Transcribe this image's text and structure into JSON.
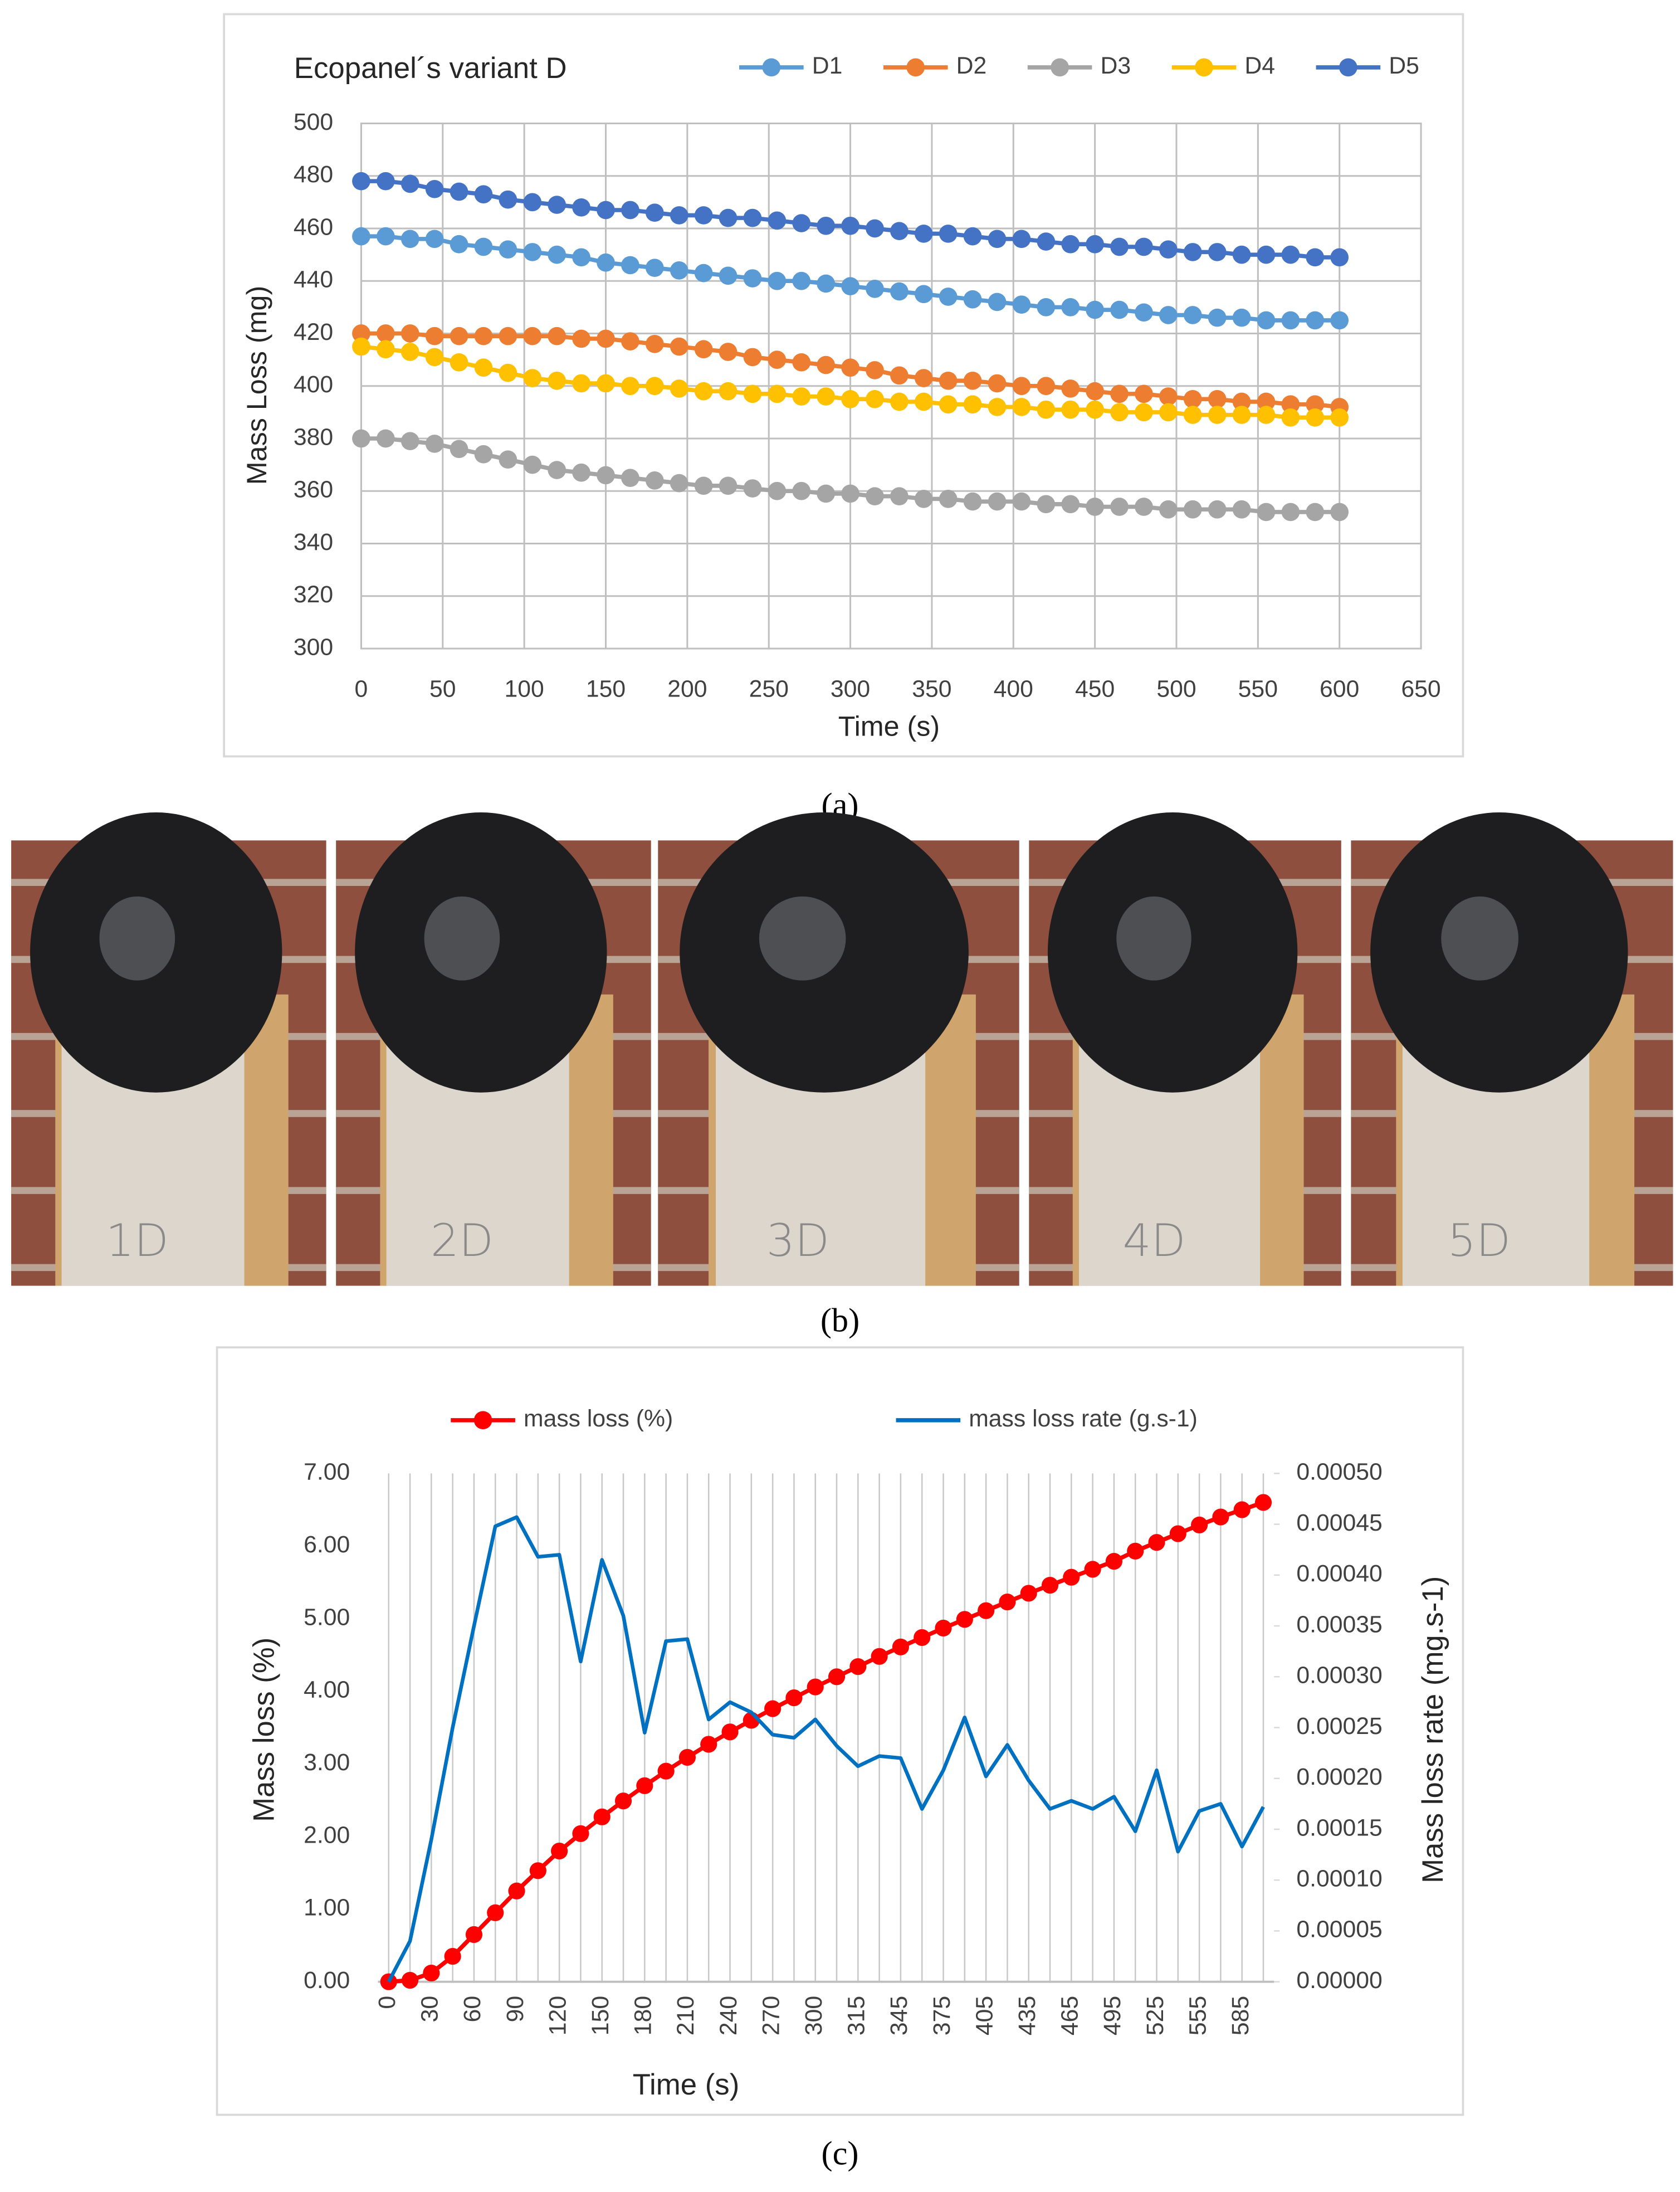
{
  "chart_data": [
    {
      "type": "line",
      "title": "Ecopanel´s variant D",
      "xlabel": "Time (s)",
      "ylabel": "Mass Loss (mg)",
      "x": [
        0,
        15,
        30,
        45,
        60,
        75,
        90,
        105,
        120,
        135,
        150,
        165,
        180,
        195,
        210,
        225,
        240,
        255,
        270,
        285,
        300,
        315,
        330,
        345,
        360,
        375,
        390,
        405,
        420,
        435,
        450,
        465,
        480,
        495,
        510,
        525,
        540,
        555,
        570,
        585,
        600
      ],
      "xlim": [
        0,
        650
      ],
      "xticks": [
        0,
        50,
        100,
        150,
        200,
        250,
        300,
        350,
        400,
        450,
        500,
        550,
        600,
        650
      ],
      "ylim": [
        300,
        500
      ],
      "yticks": [
        300,
        320,
        340,
        360,
        380,
        400,
        420,
        440,
        460,
        480,
        500
      ],
      "grid": "both",
      "legend": "top",
      "series": [
        {
          "name": "D1",
          "color": "#5b9bd5",
          "marker": true,
          "values": [
            457,
            457,
            456,
            456,
            454,
            453,
            452,
            451,
            450,
            449,
            447,
            446,
            445,
            444,
            443,
            442,
            441,
            440,
            440,
            439,
            438,
            437,
            436,
            435,
            434,
            433,
            432,
            431,
            430,
            430,
            429,
            429,
            428,
            427,
            427,
            426,
            426,
            425,
            425,
            425,
            425
          ]
        },
        {
          "name": "D2",
          "color": "#ed7d31",
          "marker": true,
          "values": [
            420,
            420,
            420,
            419,
            419,
            419,
            419,
            419,
            419,
            418,
            418,
            417,
            416,
            415,
            414,
            413,
            411,
            410,
            409,
            408,
            407,
            406,
            404,
            403,
            402,
            402,
            401,
            400,
            400,
            399,
            398,
            397,
            397,
            396,
            395,
            395,
            394,
            394,
            393,
            393,
            392
          ]
        },
        {
          "name": "D3",
          "color": "#a5a5a5",
          "marker": true,
          "values": [
            380,
            380,
            379,
            378,
            376,
            374,
            372,
            370,
            368,
            367,
            366,
            365,
            364,
            363,
            362,
            362,
            361,
            360,
            360,
            359,
            359,
            358,
            358,
            357,
            357,
            356,
            356,
            356,
            355,
            355,
            354,
            354,
            354,
            353,
            353,
            353,
            353,
            352,
            352,
            352,
            352
          ]
        },
        {
          "name": "D4",
          "color": "#ffc000",
          "marker": true,
          "values": [
            415,
            414,
            413,
            411,
            409,
            407,
            405,
            403,
            402,
            401,
            401,
            400,
            400,
            399,
            398,
            398,
            397,
            397,
            396,
            396,
            395,
            395,
            394,
            394,
            393,
            393,
            392,
            392,
            391,
            391,
            391,
            390,
            390,
            390,
            389,
            389,
            389,
            389,
            388,
            388,
            388
          ]
        },
        {
          "name": "D5",
          "color": "#4472c4",
          "marker": true,
          "values": [
            478,
            478,
            477,
            475,
            474,
            473,
            471,
            470,
            469,
            468,
            467,
            467,
            466,
            465,
            465,
            464,
            464,
            463,
            462,
            461,
            461,
            460,
            459,
            458,
            458,
            457,
            456,
            456,
            455,
            454,
            454,
            453,
            453,
            452,
            451,
            451,
            450,
            450,
            450,
            449,
            449
          ]
        }
      ]
    },
    {
      "type": "line",
      "xlabel": "Time (s)",
      "ylabel": "Mass loss  (%)",
      "y2label": "Mass loss rate  (mg.s-1)",
      "categories": [
        0,
        null,
        30,
        null,
        60,
        null,
        90,
        null,
        120,
        null,
        150,
        null,
        180,
        null,
        210,
        null,
        240,
        null,
        270,
        null,
        300,
        null,
        315,
        null,
        345,
        null,
        375,
        null,
        405,
        null,
        435,
        null,
        465,
        null,
        495,
        null,
        525,
        null,
        555,
        null,
        585,
        null
      ],
      "ylim": [
        0,
        7
      ],
      "yticks": [
        {
          "value": 0,
          "label": "0.00"
        },
        {
          "value": 1,
          "label": "1.00"
        },
        {
          "value": 2,
          "label": "2.00"
        },
        {
          "value": 3,
          "label": "3.00"
        },
        {
          "value": 4,
          "label": "4.00"
        },
        {
          "value": 5,
          "label": "5.00"
        },
        {
          "value": 6,
          "label": "6.00"
        },
        {
          "value": 7,
          "label": "7.00"
        }
      ],
      "y2lim": [
        0,
        0.0005
      ],
      "y2ticks": [
        {
          "value": 0,
          "label": "0.00000"
        },
        {
          "value": 5e-05,
          "label": "0.00005"
        },
        {
          "value": 0.0001,
          "label": "0.00010"
        },
        {
          "value": 0.00015,
          "label": "0.00015"
        },
        {
          "value": 0.0002,
          "label": "0.00020"
        },
        {
          "value": 0.00025,
          "label": "0.00025"
        },
        {
          "value": 0.0003,
          "label": "0.00030"
        },
        {
          "value": 0.00035,
          "label": "0.00035"
        },
        {
          "value": 0.0004,
          "label": "0.00040"
        },
        {
          "value": 0.00045,
          "label": "0.00045"
        },
        {
          "value": 0.0005,
          "label": "0.00050"
        }
      ],
      "grid": "x",
      "legend": "top",
      "series": [
        {
          "name": "mass loss (%)",
          "color": "#ff0000",
          "marker": true,
          "values": [
            0,
            0.02,
            0.12,
            0.35,
            0.65,
            0.95,
            1.25,
            1.53,
            1.8,
            2.04,
            2.27,
            2.49,
            2.7,
            2.9,
            3.09,
            3.27,
            3.44,
            3.6,
            3.76,
            3.91,
            4.06,
            4.2,
            4.34,
            4.48,
            4.61,
            4.74,
            4.87,
            4.99,
            5.11,
            5.23,
            5.35,
            5.46,
            5.57,
            5.68,
            5.79,
            5.93,
            6.05,
            6.17,
            6.29,
            6.4,
            6.5,
            6.6
          ]
        },
        {
          "name": "mass loss rate (g.s-1)",
          "color": "#0070c0",
          "marker": false,
          "axis": "y2",
          "values": [
            0,
            4e-05,
            0.00014,
            0.00025,
            0.00035,
            0.000448,
            0.000457,
            0.000418,
            0.00042,
            0.000315,
            0.000415,
            0.00036,
            0.000245,
            0.000335,
            0.000337,
            0.000258,
            0.000275,
            0.000265,
            0.000243,
            0.00024,
            0.000258,
            0.000232,
            0.000212,
            0.000222,
            0.00022,
            0.00017,
            0.000208,
            0.00026,
            0.000202,
            0.000233,
            0.000198,
            0.00017,
            0.000178,
            0.00017,
            0.000182,
            0.000148,
            0.000208,
            0.000128,
            0.000168,
            0.000175,
            0.000133,
            0.000172
          ]
        }
      ]
    }
  ],
  "photos": {
    "labels": [
      "1D",
      "2D",
      "3D",
      "4D",
      "5D"
    ]
  },
  "captions": [
    "(a)",
    "(b)",
    "(c)"
  ]
}
